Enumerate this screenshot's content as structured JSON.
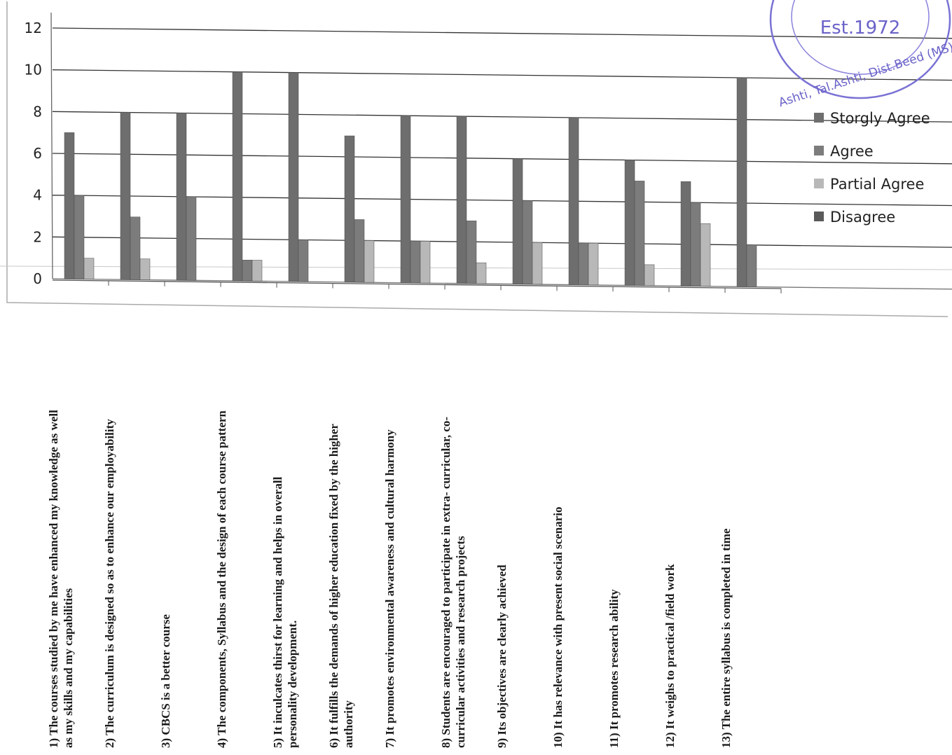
{
  "chart_data": {
    "type": "bar",
    "yticks": [
      0,
      2,
      4,
      6,
      8,
      10,
      12
    ],
    "ylim": [
      0,
      12
    ],
    "grid": true,
    "legend_position": "right",
    "categories": [
      [
        "1) The courses studied by me have enhanced my knowledge as well",
        "as my  skills and my capabilities"
      ],
      [
        "2) The curriculum is designed so as to enhance our employability"
      ],
      [
        "3) CBCS is a better course"
      ],
      [
        "4) The components, Syllabus and the design of each course pattern"
      ],
      [
        "5) It inculcates thirst for learning and helps in overall",
        "personality development."
      ],
      [
        "6) It fulfills the demands of higher education fixed by the higher",
        "authority"
      ],
      [
        "7) It promotes environmental awareness and cultural harmony"
      ],
      [
        "8) Students are encouraged to participate in extra- curricular, co-",
        "curricular  activities and research projects"
      ],
      [
        "9) Its objectives are clearly achieved"
      ],
      [
        "10) It has relevance with present social scenario"
      ],
      [
        "11) It promotes research ability"
      ],
      [
        "12) It weighs to practical /field work"
      ],
      [
        "13) The entire syllabus is completed in time"
      ]
    ],
    "series": [
      {
        "name": "Storgly Agree",
        "color": "#6e6e6e",
        "values": [
          7,
          8,
          8,
          10,
          10,
          7,
          8,
          8,
          6,
          8,
          6,
          5,
          10
        ]
      },
      {
        "name": "Agree",
        "color": "#7c7c7c",
        "values": [
          4,
          3,
          4,
          1,
          2,
          3,
          2,
          3,
          4,
          2,
          5,
          4,
          2
        ]
      },
      {
        "name": "Partial Agree",
        "color": "#b8b8b8",
        "values": [
          1,
          1,
          0,
          1,
          0,
          2,
          2,
          1,
          2,
          2,
          1,
          3,
          0
        ]
      },
      {
        "name": "Disagree",
        "color": "#5a5a5a",
        "values": [
          0,
          0,
          0,
          0,
          0,
          0,
          0,
          0,
          0,
          0,
          0,
          0,
          0
        ]
      }
    ]
  },
  "stamp": {
    "lines": [
      "Est.1972",
      "Ashti, Tal.Ashti, Dist.Beed (MS)"
    ],
    "color": "#6b63c8"
  }
}
